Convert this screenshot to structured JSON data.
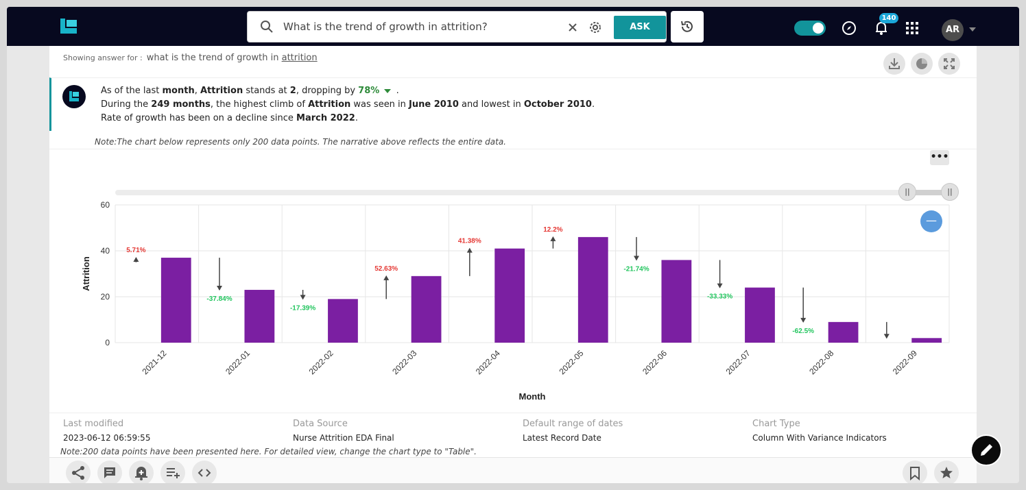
{
  "header": {
    "search_query": "What is the trend of growth in attrition?",
    "ask_label": "ASK",
    "notification_count": "140",
    "avatar_initials": "AR"
  },
  "answer": {
    "showing_label": "Showing answer for :",
    "showing_query_prefix": "what is the trend of growth in",
    "showing_query_link": "attrition",
    "line1": [
      "As of the last ",
      "month",
      ", ",
      "Attrition",
      " stands at ",
      "2",
      ",  dropping by ",
      "78%",
      " ."
    ],
    "line2": [
      "During the ",
      "249 months",
      ", the highest climb of ",
      "Attrition",
      " was seen in ",
      "June 2010",
      " and lowest in ",
      "October 2010",
      "."
    ],
    "line3": [
      "Rate of growth has been on a decline since ",
      "March 2022",
      "."
    ],
    "note": "Note:The chart below represents only 200 data points. The narrative above reflects the entire data."
  },
  "chart_data": {
    "type": "bar",
    "categories": [
      "2021-12",
      "2022-01",
      "2022-02",
      "2022-03",
      "2022-04",
      "2022-05",
      "2022-06",
      "2022-07",
      "2022-08",
      "2022-09"
    ],
    "values": [
      37,
      23,
      19,
      29,
      41,
      46,
      36,
      24,
      9,
      2
    ],
    "variance": [
      {
        "label": "5.71%",
        "dir": "up",
        "from": 35,
        "to": 37
      },
      {
        "label": "-37.84%",
        "dir": "down",
        "from": 37,
        "to": 23
      },
      {
        "label": "-17.39%",
        "dir": "down",
        "from": 23,
        "to": 19
      },
      {
        "label": "52.63%",
        "dir": "up",
        "from": 19,
        "to": 29
      },
      {
        "label": "41.38%",
        "dir": "up",
        "from": 29,
        "to": 41
      },
      {
        "label": "12.2%",
        "dir": "up",
        "from": 41,
        "to": 46
      },
      {
        "label": "-21.74%",
        "dir": "down",
        "from": 46,
        "to": 36
      },
      {
        "label": "-33.33%",
        "dir": "down",
        "from": 36,
        "to": 24
      },
      {
        "label": "-62.5%",
        "dir": "down",
        "from": 24,
        "to": 9
      },
      {
        "label": "",
        "dir": "down",
        "from": 9,
        "to": 2
      }
    ],
    "xlabel": "Month",
    "ylabel": "Attrition",
    "ylim": [
      0,
      60
    ],
    "yticks": [
      0,
      20,
      40,
      60
    ],
    "bar_color": "#7b1fa2",
    "up_color": "#e53935",
    "down_color": "#22c55e",
    "grid": true
  },
  "meta": {
    "last_modified_label": "Last modified",
    "last_modified_value": "2023-06-12 06:59:55",
    "data_source_label": "Data Source",
    "data_source_value": "Nurse Attrition EDA Final",
    "date_range_label": "Default range of dates",
    "date_range_value": "Latest Record Date",
    "chart_type_label": "Chart Type",
    "chart_type_value": "Column With Variance Indicators",
    "note": "Note:200 data points have been presented here. For detailed view, change the chart type to \"Table\"."
  },
  "colors": {
    "topbar": "#07091f",
    "accent": "#12949b"
  },
  "icons": {
    "top": [
      "search-icon",
      "clear-icon",
      "settings-icon",
      "history-icon",
      "compass-icon",
      "bell-icon",
      "apps-grid-icon",
      "caret-down-icon"
    ],
    "card": [
      "download-icon",
      "pie-chart-icon",
      "expand-icon",
      "more-icon",
      "minus-icon"
    ],
    "bottom": [
      "share-icon",
      "comment-icon",
      "alert-add-icon",
      "playlist-add-icon",
      "code-icon",
      "bookmark-icon",
      "star-icon",
      "pencil-icon"
    ]
  }
}
